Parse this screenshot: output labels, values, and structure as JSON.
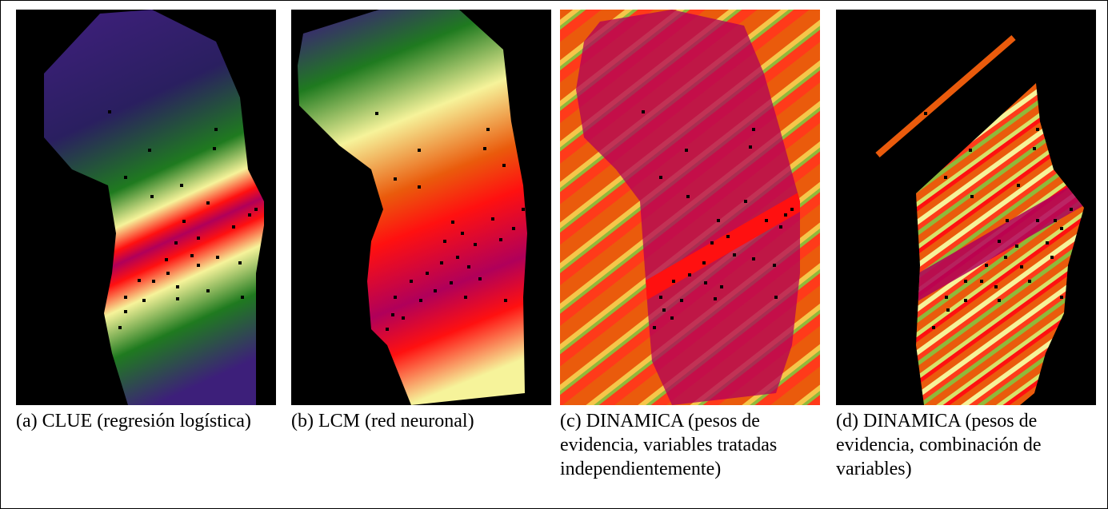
{
  "figure": {
    "panels": [
      {
        "id": "a",
        "caption": "(a) CLUE (regresión logística)"
      },
      {
        "id": "b",
        "caption": "(b) LCM (red neuronal)"
      },
      {
        "id": "c",
        "caption": "(c) DINAMICA (pesos de evidencia, variables tratadas independientemente)"
      },
      {
        "id": "d",
        "caption": "(d) DINAMICA (pesos de evidencia, combinación de variables)"
      }
    ]
  },
  "colors": {
    "background": "#000000",
    "purple": "#3d1f7a",
    "green": "#1f7a1f",
    "yellow": "#f6f39a",
    "red": "#ff1010",
    "magenta": "#b0005a",
    "orange": "#ea5b0c"
  }
}
